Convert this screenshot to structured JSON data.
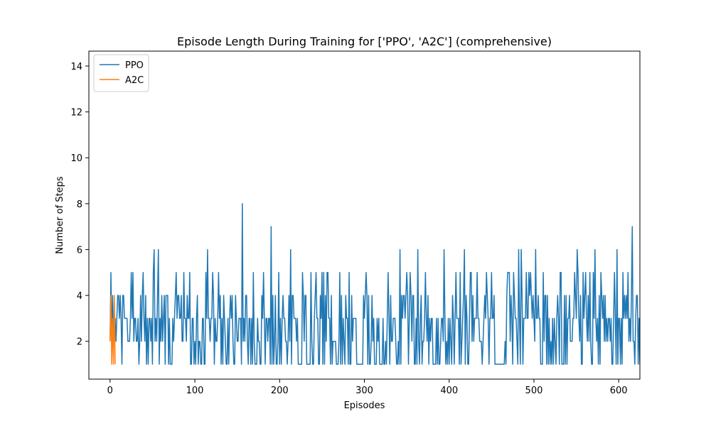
{
  "chart_data": {
    "type": "line",
    "title": "Episode Length During Training for ['PPO', 'A2C'] (comprehensive)",
    "xlabel": "Episodes",
    "ylabel": "Number of Steps",
    "xlim": [
      -25,
      625
    ],
    "ylim": [
      0.35,
      14.65
    ],
    "xticks": [
      0,
      100,
      200,
      300,
      400,
      500,
      600
    ],
    "yticks": [
      2,
      4,
      6,
      8,
      10,
      12,
      14
    ],
    "grid": false,
    "legend": "upper-left",
    "series": [
      {
        "name": "PPO",
        "color": "#1f77b4",
        "x_start": 0,
        "values_string": "252423323443431443333222353523322312424532413133231562324613242341444131113234534433422533243351133121341221133115363323354132235341314321131343421143223331823244213313152111322114353133233171412411251313433221242614433323111115424411111521134533114351514255331412222111251413214331511423333111111114345414112423111323111131121353142233321121614344345413542441131621341223532413233111131311233263121313214313533315123461431135524233353322212343543133533411111111111121455524315433216316413335335454343263343311152441413121313213431551114141334222335436532411534532425211536323141543424232332311353161331315343435232472213441314324341313313141423533442112412131343433321141311354113315533553321431521311213414211334174336135323315431323136532513521414143153421"
      },
      {
        "name": "A2C",
        "color": "#ff7f0e",
        "x": [
          0,
          1,
          2,
          3,
          4,
          5,
          6
        ],
        "values": [
          2,
          4,
          1,
          3,
          1,
          4,
          1
        ]
      }
    ]
  }
}
